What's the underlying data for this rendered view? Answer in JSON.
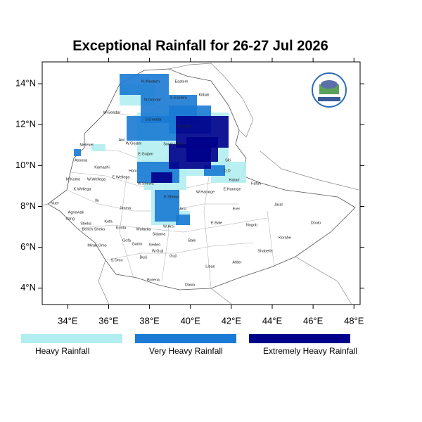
{
  "map": {
    "title": "Exceptional Rainfall for 26-27 Jul 2026",
    "xlim": [
      32.75,
      48.3
    ],
    "ylim": [
      3.2,
      15.07
    ],
    "xticks": [
      {
        "value": 34,
        "label": "34°E"
      },
      {
        "value": 36,
        "label": "36°E"
      },
      {
        "value": 38,
        "label": "38°E"
      },
      {
        "value": 40,
        "label": "40°E"
      },
      {
        "value": 42,
        "label": "42°E"
      },
      {
        "value": 44,
        "label": "44°E"
      },
      {
        "value": 46,
        "label": "46°E"
      },
      {
        "value": 48,
        "label": "48°E"
      }
    ],
    "yticks": [
      {
        "value": 4,
        "label": "4°N"
      },
      {
        "value": 6,
        "label": "6°N"
      },
      {
        "value": 8,
        "label": "8°N"
      },
      {
        "value": 10,
        "label": "10°N"
      },
      {
        "value": 12,
        "label": "12°N"
      },
      {
        "value": 14,
        "label": "14°N"
      }
    ],
    "legend": [
      {
        "name": "Heavy Rainfall",
        "color": "#b2eef0"
      },
      {
        "name": "Very Heavy Rainfall",
        "color": "#1a7ad4"
      },
      {
        "name": "Extremely Heavy Rainfall",
        "color": "#00008b"
      }
    ],
    "regions": [
      "N.Western",
      "Eastern",
      "Kilbati",
      "N.Gondar",
      "S.Eastern",
      "W.Gondar",
      "S.Gondar",
      "N.Wollo",
      "Awi",
      "W.Gojam",
      "South Wello",
      "Metekel",
      "E.Gojam",
      "Assosa",
      "Kamashi",
      "Siti",
      "Horo",
      "D.D",
      "M.Komo",
      "W.Wellega",
      "E.Wellega",
      "W.Shewa",
      "Harari",
      "Fafan",
      "W.Hararge",
      "E.Hararge",
      "K.Wellega",
      "E.Shewa",
      "Ilu",
      "Nuer",
      "Jimma",
      "Arsi",
      "Erer",
      "Jarar",
      "Itang",
      "Agnewak",
      "Sheka",
      "Bench Sheko",
      "Kefa",
      "Konta",
      "Wolayita",
      "W.Arsi",
      "E.Bale",
      "Nogob",
      "Doolo",
      "Sidama",
      "Korahe",
      "Mirab Omo",
      "Gofa",
      "Gamo",
      "Gedeo",
      "Bale",
      "Shabelle",
      "W.Guji",
      "S.Omo",
      "Burji",
      "Guji",
      "Afder",
      "Liban",
      "Borena",
      "Dawa"
    ]
  }
}
